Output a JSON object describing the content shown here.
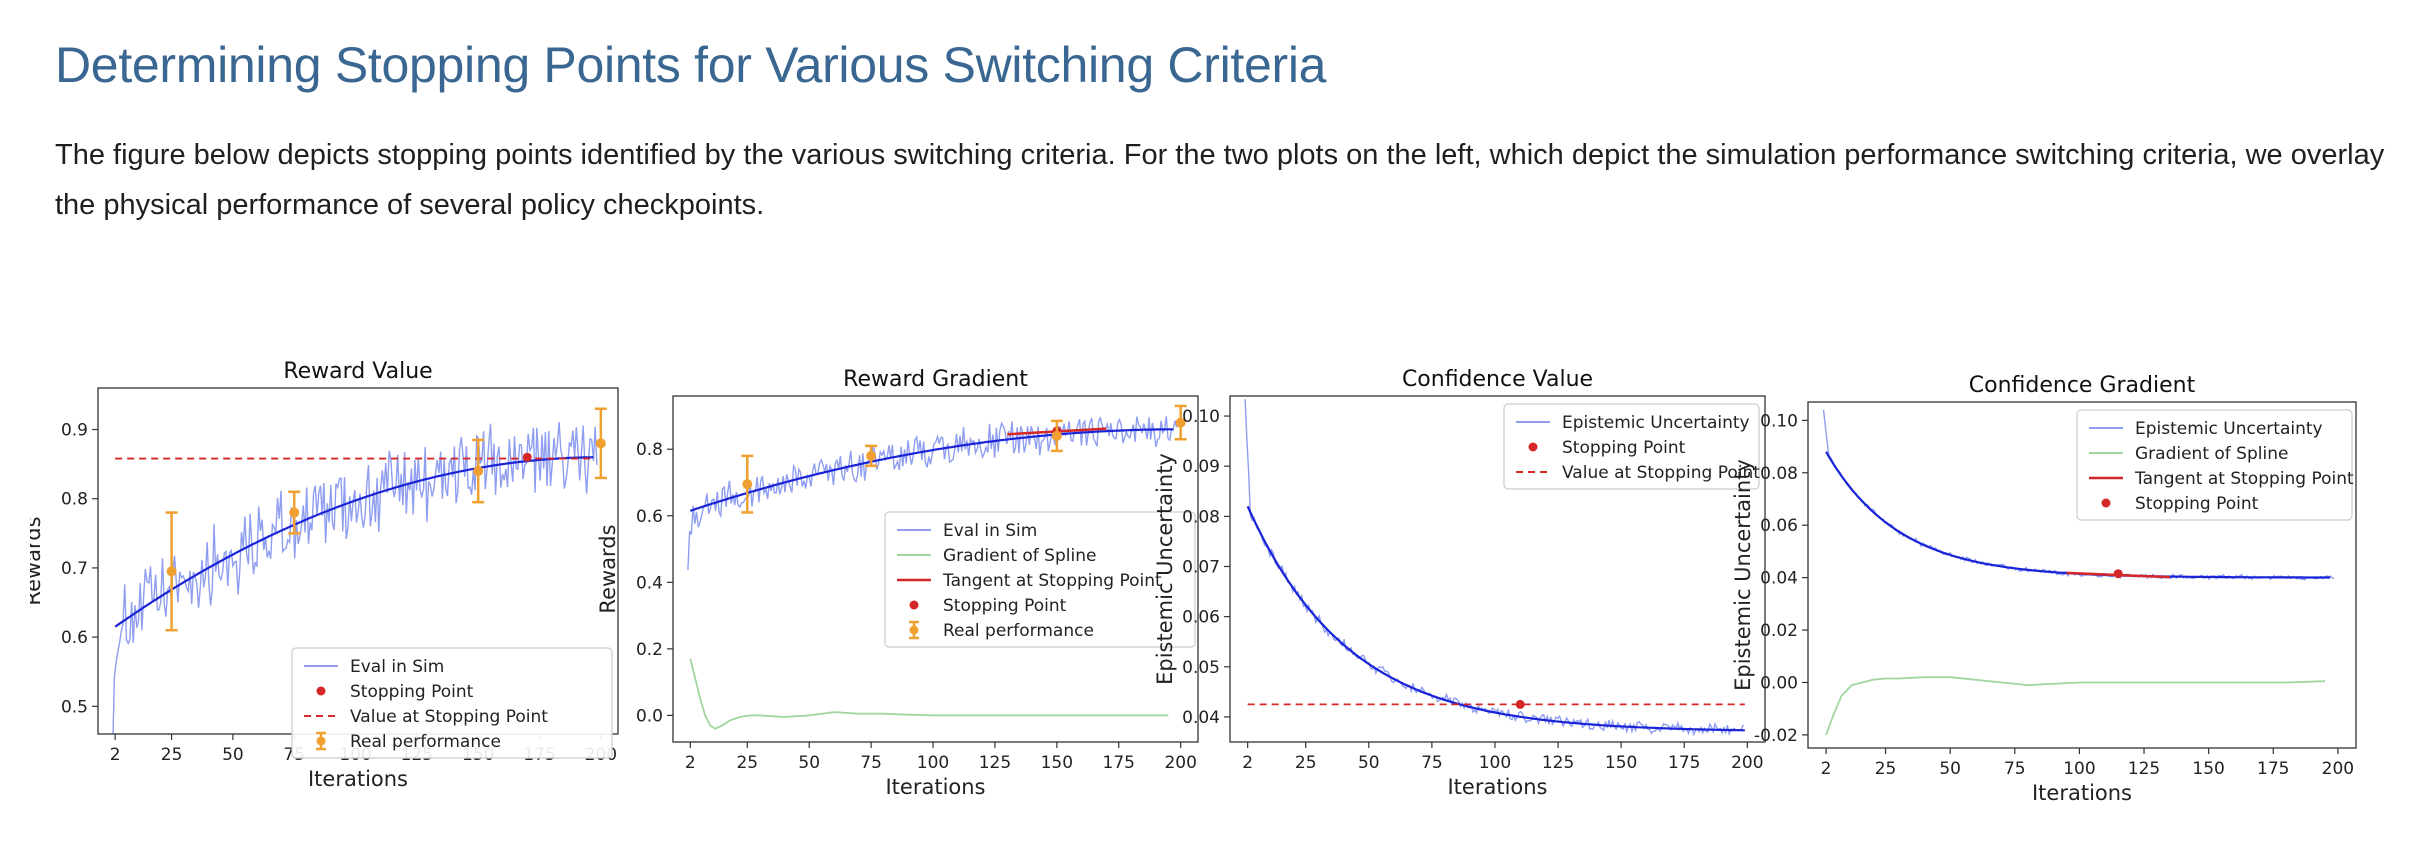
{
  "page": {
    "title": "Determining Stopping Points for Various Switching Criteria",
    "intro": "The figure below depicts stopping points identified by the various switching criteria. For the two plots on the left, which depict the simulation performance switching criteria, we overlay the physical performance of several policy checkpoints."
  },
  "colors": {
    "sim": "#8f9ef0",
    "fit": "#1a24d6",
    "gradient": "#9fd69f",
    "stop": "#d62728",
    "real": "#f0a030"
  },
  "chart_data": [
    {
      "type": "line",
      "title": "Reward Value",
      "xlabel": "Iterations",
      "ylabel": "Rewards",
      "xlim": [
        -5,
        207
      ],
      "ylim": [
        0.46,
        0.96
      ],
      "xticks": [
        2,
        25,
        50,
        75,
        100,
        125,
        150,
        175,
        200
      ],
      "yticks": [
        0.5,
        0.6,
        0.7,
        0.8,
        0.9
      ],
      "legend_position": "lower-right",
      "series": [
        {
          "name": "Eval in Sim",
          "kind": "noisy_sim",
          "values_model": "sat",
          "x_range": [
            1,
            199
          ],
          "params": {
            "a": 0.61,
            "b": 0.86,
            "k": 200,
            "noise": 0.05
          }
        },
        {
          "name": "",
          "kind": "fit",
          "values_model": "sat",
          "x_range": [
            2,
            197
          ],
          "params": {
            "a": 0.61,
            "b": 0.86,
            "k": 200
          }
        },
        {
          "name": "Stopping Point",
          "kind": "stop_point",
          "x": [
            170
          ],
          "y": [
            0.86
          ]
        },
        {
          "name": "Value at Stopping Point",
          "kind": "hline",
          "y": 0.858,
          "x_range": [
            2,
            197
          ]
        },
        {
          "name": "Real performance",
          "kind": "errorbar",
          "x": [
            25,
            75,
            150,
            200
          ],
          "y": [
            0.695,
            0.78,
            0.84,
            0.88
          ],
          "err": [
            0.085,
            0.03,
            0.045,
            0.05
          ]
        }
      ]
    },
    {
      "type": "line",
      "title": "Reward Gradient",
      "xlabel": "Iterations",
      "ylabel": "Rewards",
      "xlim": [
        -5,
        207
      ],
      "ylim": [
        -0.08,
        0.96
      ],
      "xticks": [
        2,
        25,
        50,
        75,
        100,
        125,
        150,
        175,
        200
      ],
      "yticks": [
        0.0,
        0.2,
        0.4,
        0.6,
        0.8
      ],
      "legend_position": "center-right",
      "series": [
        {
          "name": "Eval in Sim",
          "kind": "noisy_sim",
          "values_model": "sat",
          "x_range": [
            1,
            199
          ],
          "params": {
            "a": 0.61,
            "b": 0.86,
            "k": 200,
            "noise": 0.045
          }
        },
        {
          "name": "",
          "kind": "fit",
          "values_model": "sat",
          "x_range": [
            2,
            197
          ],
          "params": {
            "a": 0.61,
            "b": 0.86,
            "k": 200
          }
        },
        {
          "name": "Gradient of Spline",
          "kind": "gradient",
          "x": [
            2,
            4,
            6,
            8,
            10,
            12,
            15,
            18,
            22,
            26,
            30,
            40,
            50,
            60,
            70,
            80,
            90,
            100,
            120,
            150,
            180,
            195
          ],
          "y": [
            0.17,
            0.11,
            0.05,
            0.0,
            -0.03,
            -0.04,
            -0.03,
            -0.015,
            -0.005,
            0.0,
            0.0,
            -0.005,
            0.0,
            0.01,
            0.005,
            0.005,
            0.002,
            0.0,
            0.0,
            0.0,
            0.0,
            0.0
          ]
        },
        {
          "name": "Tangent at Stopping Point",
          "kind": "tangent",
          "x": [
            130,
            170
          ],
          "y": [
            0.845,
            0.862
          ]
        },
        {
          "name": "Stopping Point",
          "kind": "stop_point",
          "x": [
            150
          ],
          "y": [
            0.855
          ]
        },
        {
          "name": "Real performance",
          "kind": "errorbar",
          "x": [
            25,
            75,
            150,
            200
          ],
          "y": [
            0.695,
            0.78,
            0.84,
            0.88
          ],
          "err": [
            0.085,
            0.03,
            0.045,
            0.05
          ]
        }
      ]
    },
    {
      "type": "line",
      "title": "Confidence Value",
      "xlabel": "Iterations",
      "ylabel": "Epistemic Uncertainty",
      "xlim": [
        -5,
        207
      ],
      "ylim": [
        0.035,
        0.104
      ],
      "xticks": [
        2,
        25,
        50,
        75,
        100,
        125,
        150,
        175,
        200
      ],
      "yticks": [
        0.04,
        0.05,
        0.06,
        0.07,
        0.08,
        0.09,
        0.1
      ],
      "legend_position": "upper-right",
      "series": [
        {
          "name": "Epistemic Uncertainty",
          "kind": "noisy_sim",
          "values_model": "exp",
          "x_range": [
            1,
            199
          ],
          "params": {
            "a": 0.037,
            "b": 0.045,
            "tau": 40,
            "x0": 2,
            "noise": 0.001,
            "spike": 0.021
          }
        },
        {
          "name": "",
          "kind": "fit",
          "values_model": "exp",
          "x_range": [
            2,
            199
          ],
          "params": {
            "a": 0.037,
            "b": 0.045,
            "tau": 40,
            "x0": 2
          }
        },
        {
          "name": "Stopping Point",
          "kind": "stop_point",
          "x": [
            110
          ],
          "y": [
            0.0425
          ]
        },
        {
          "name": "Value at Stopping Point",
          "kind": "hline",
          "y": 0.0425,
          "x_range": [
            2,
            199
          ]
        }
      ]
    },
    {
      "type": "line",
      "title": "Confidence Gradient",
      "xlabel": "Iterations",
      "ylabel": "Epistemic Uncertainty",
      "xlim": [
        -5,
        207
      ],
      "ylim": [
        -0.025,
        0.107
      ],
      "xticks": [
        2,
        25,
        50,
        75,
        100,
        125,
        150,
        175,
        200
      ],
      "yticks": [
        -0.02,
        0.0,
        0.02,
        0.04,
        0.06,
        0.08,
        0.1
      ],
      "legend_position": "upper-right",
      "series": [
        {
          "name": "Epistemic Uncertainty",
          "kind": "noisy_sim",
          "values_model": "exp",
          "x_range": [
            1,
            199
          ],
          "params": {
            "a": 0.04,
            "b": 0.048,
            "tau": 28,
            "x0": 2,
            "noise": 0.0008,
            "spike": 0.015
          }
        },
        {
          "name": "",
          "kind": "fit",
          "values_model": "exp",
          "x_range": [
            2,
            197
          ],
          "params": {
            "a": 0.04,
            "b": 0.048,
            "tau": 28,
            "x0": 2
          }
        },
        {
          "name": "Gradient of Spline",
          "kind": "gradient",
          "x": [
            2,
            5,
            8,
            12,
            16,
            20,
            25,
            30,
            40,
            50,
            60,
            70,
            80,
            100,
            120,
            150,
            180,
            195
          ],
          "y": [
            -0.02,
            -0.012,
            -0.005,
            -0.001,
            0.0,
            0.001,
            0.0015,
            0.0015,
            0.002,
            0.002,
            0.001,
            0.0,
            -0.001,
            0.0,
            0.0,
            0.0,
            0.0,
            0.0005
          ]
        },
        {
          "name": "Tangent at Stopping Point",
          "kind": "tangent",
          "x": [
            95,
            135
          ],
          "y": [
            0.0418,
            0.0402
          ]
        },
        {
          "name": "Stopping Point",
          "kind": "stop_point",
          "x": [
            115
          ],
          "y": [
            0.0415
          ]
        }
      ]
    }
  ]
}
